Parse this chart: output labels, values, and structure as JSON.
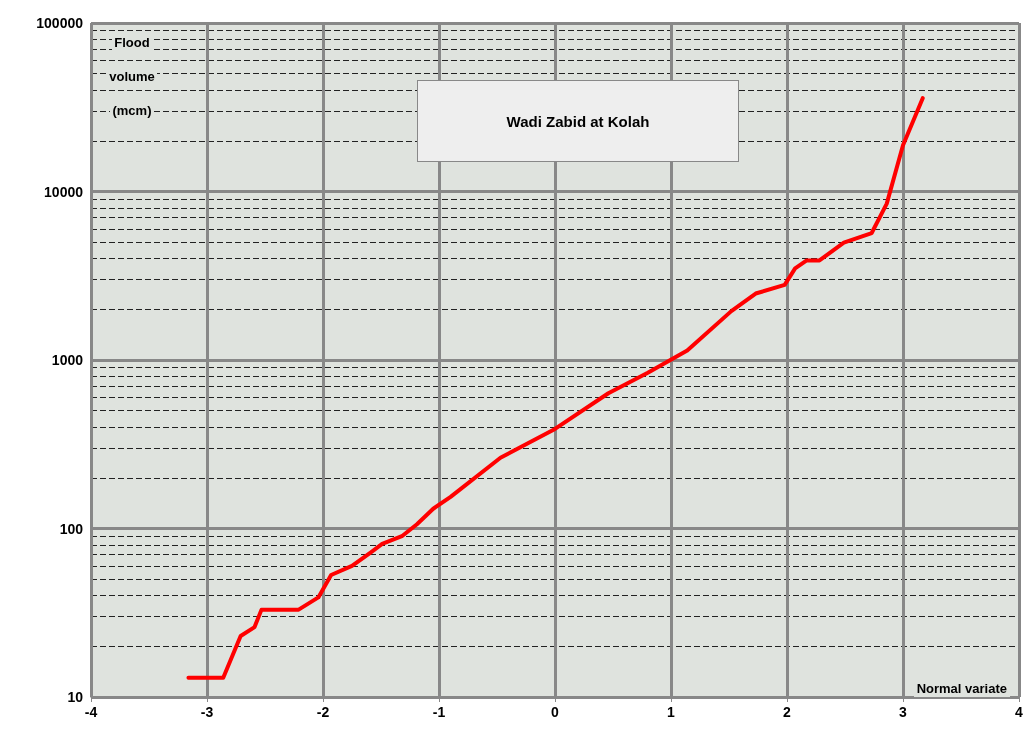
{
  "chart_data": {
    "type": "line",
    "title": "Wadi Zabid at Kolah",
    "xlabel": "Normal variate",
    "ylabel": "Flood volume (mcm)",
    "log": "y",
    "grid": true,
    "marker": "none",
    "line_style": "solid",
    "xlim": [
      -4,
      4
    ],
    "xticks": [
      -4,
      -3,
      -2,
      -1,
      0,
      1,
      2,
      3,
      4
    ],
    "ylim": [
      10,
      100000
    ],
    "yticks": [
      10,
      100,
      1000,
      10000,
      100000
    ],
    "series": [
      {
        "color": "#ff0000",
        "x": [
          -3.16,
          -2.86,
          -2.71,
          -2.59,
          -2.53,
          -2.21,
          -2.04,
          -1.93,
          -1.75,
          -1.59,
          -1.49,
          -1.32,
          -1.19,
          -1.05,
          -0.9,
          -0.47,
          0,
          0.46,
          0.8,
          1.14,
          1.52,
          1.73,
          1.98,
          2.07,
          2.17,
          2.28,
          2.49,
          2.73,
          2.86,
          3.0,
          3.17
        ],
        "values": [
          13,
          13,
          23,
          26,
          33,
          33,
          39,
          53,
          60,
          72,
          81,
          90,
          106,
          131,
          154,
          263,
          390,
          635,
          840,
          1140,
          1950,
          2480,
          2790,
          3500,
          3900,
          3900,
          4970,
          5670,
          8470,
          18800,
          35800
        ]
      }
    ]
  }
}
